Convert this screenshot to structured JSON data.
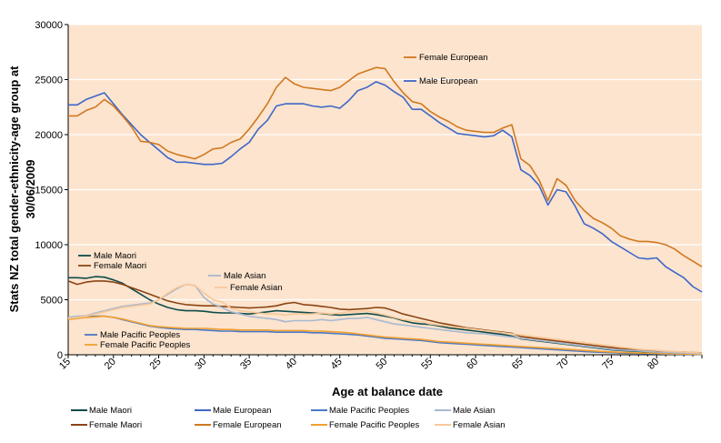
{
  "chart_data": {
    "type": "line",
    "xlabel": "Age at balance date",
    "ylabel_lines": [
      "Stats NZ total gender-ethnicity-age group at",
      "30/06/2009"
    ],
    "ylim": [
      0,
      30000
    ],
    "yticks": [
      "0",
      "5000",
      "10000",
      "15000",
      "20000",
      "25000",
      "30000"
    ],
    "xlim": [
      15,
      85
    ],
    "xticks": [
      "15",
      "20",
      "25",
      "30",
      "35",
      "40",
      "45",
      "50",
      "55",
      "60",
      "65",
      "70",
      "75",
      "80"
    ],
    "grid": "horizontal",
    "plot_background": "#FCE4CE",
    "ages": [
      15,
      16,
      17,
      18,
      19,
      20,
      21,
      22,
      23,
      24,
      25,
      26,
      27,
      28,
      29,
      30,
      31,
      32,
      33,
      34,
      35,
      36,
      37,
      38,
      39,
      40,
      41,
      42,
      43,
      44,
      45,
      46,
      47,
      48,
      49,
      50,
      51,
      52,
      53,
      54,
      55,
      56,
      57,
      58,
      59,
      60,
      61,
      62,
      63,
      64,
      65,
      66,
      67,
      68,
      69,
      70,
      71,
      72,
      73,
      74,
      75,
      76,
      77,
      78,
      79,
      80,
      81,
      82,
      83,
      84,
      85
    ],
    "series": [
      {
        "name": "Male Maori",
        "color": "#0F4B4B",
        "values": [
          7000,
          7000,
          6950,
          7100,
          7050,
          6800,
          6500,
          6000,
          5500,
          5000,
          4600,
          4300,
          4100,
          4000,
          4000,
          3950,
          3850,
          3800,
          3800,
          3750,
          3700,
          3800,
          3900,
          4000,
          3950,
          3900,
          3850,
          3800,
          3750,
          3650,
          3600,
          3650,
          3700,
          3750,
          3650,
          3500,
          3350,
          3100,
          2900,
          2800,
          2750,
          2600,
          2450,
          2350,
          2250,
          2150,
          2050,
          1950,
          1850,
          1700,
          1450,
          1350,
          1250,
          1150,
          1050,
          950,
          850,
          750,
          650,
          550,
          450,
          400,
          350,
          300,
          250,
          200,
          180,
          160,
          140,
          110,
          90
        ]
      },
      {
        "name": "Female Maori",
        "color": "#8B4513",
        "values": [
          6700,
          6400,
          6600,
          6700,
          6700,
          6600,
          6400,
          6100,
          5800,
          5500,
          5200,
          4900,
          4700,
          4550,
          4500,
          4450,
          4450,
          4400,
          4350,
          4300,
          4250,
          4300,
          4350,
          4450,
          4650,
          4750,
          4550,
          4500,
          4400,
          4300,
          4150,
          4100,
          4150,
          4200,
          4300,
          4250,
          4000,
          3700,
          3500,
          3300,
          3100,
          2900,
          2750,
          2600,
          2450,
          2350,
          2250,
          2150,
          2050,
          1950,
          1650,
          1550,
          1450,
          1350,
          1250,
          1150,
          1050,
          950,
          850,
          750,
          650,
          550,
          500,
          450,
          400,
          350,
          300,
          270,
          240,
          200,
          170
        ]
      },
      {
        "name": "Male European",
        "color": "#3F66C8",
        "values": [
          22700,
          22700,
          23200,
          23500,
          23800,
          22800,
          21800,
          20900,
          20000,
          19300,
          18600,
          17900,
          17500,
          17500,
          17400,
          17300,
          17300,
          17400,
          18000,
          18700,
          19300,
          20500,
          21300,
          22600,
          22800,
          22800,
          22800,
          22600,
          22500,
          22600,
          22400,
          23100,
          24000,
          24300,
          24800,
          24500,
          23900,
          23400,
          22300,
          22300,
          21700,
          21100,
          20600,
          20100,
          20000,
          19900,
          19800,
          19900,
          20400,
          19800,
          16800,
          16300,
          15400,
          13600,
          15000,
          14800,
          13500,
          11900,
          11500,
          11000,
          10300,
          9800,
          9300,
          8800,
          8700,
          8800,
          8000,
          7500,
          7000,
          6200,
          5700
        ]
      },
      {
        "name": "Female European",
        "color": "#D07820",
        "values": [
          21700,
          21700,
          22200,
          22500,
          23200,
          22600,
          21700,
          20700,
          19400,
          19300,
          19100,
          18500,
          18200,
          18000,
          17800,
          18200,
          18700,
          18800,
          19300,
          19600,
          20500,
          21600,
          22800,
          24300,
          25200,
          24600,
          24300,
          24200,
          24100,
          24000,
          24300,
          24900,
          25500,
          25800,
          26100,
          26000,
          24800,
          23800,
          23000,
          22800,
          22100,
          21600,
          21200,
          20700,
          20400,
          20300,
          20200,
          20200,
          20600,
          20900,
          17800,
          17200,
          15900,
          14000,
          16000,
          15400,
          14000,
          13100,
          12400,
          12000,
          11500,
          10800,
          10500,
          10300,
          10300,
          10200,
          10000,
          9600,
          9000,
          8500,
          8000
        ]
      },
      {
        "name": "Male Pacific Peoples",
        "color": "#4A78C8",
        "values": [
          3300,
          3400,
          3450,
          3500,
          3500,
          3400,
          3200,
          3000,
          2800,
          2600,
          2500,
          2400,
          2350,
          2300,
          2300,
          2250,
          2200,
          2150,
          2150,
          2100,
          2100,
          2100,
          2100,
          2050,
          2050,
          2050,
          2050,
          2000,
          2000,
          1950,
          1900,
          1850,
          1800,
          1700,
          1600,
          1500,
          1450,
          1400,
          1350,
          1300,
          1200,
          1100,
          1050,
          1000,
          950,
          900,
          850,
          800,
          750,
          700,
          650,
          600,
          550,
          500,
          450,
          400,
          350,
          300,
          250,
          220,
          190,
          160,
          140,
          120,
          100,
          80,
          70,
          60,
          50,
          40,
          30
        ]
      },
      {
        "name": "Female Pacific Peoples",
        "color": "#F0A030",
        "values": [
          3200,
          3300,
          3400,
          3450,
          3500,
          3400,
          3250,
          3050,
          2850,
          2650,
          2550,
          2500,
          2450,
          2400,
          2400,
          2400,
          2350,
          2300,
          2300,
          2250,
          2250,
          2250,
          2250,
          2200,
          2200,
          2200,
          2200,
          2150,
          2150,
          2100,
          2050,
          2000,
          1900,
          1800,
          1700,
          1600,
          1550,
          1500,
          1450,
          1400,
          1300,
          1200,
          1150,
          1100,
          1050,
          1000,
          950,
          900,
          850,
          800,
          750,
          700,
          650,
          600,
          550,
          500,
          450,
          400,
          350,
          300,
          260,
          220,
          190,
          160,
          140,
          120,
          100,
          85,
          70,
          55,
          40
        ]
      },
      {
        "name": "Male Asian",
        "color": "#A8B8D0",
        "values": [
          3400,
          3500,
          3550,
          3800,
          4000,
          4200,
          4400,
          4500,
          4600,
          4700,
          5000,
          5500,
          6000,
          6400,
          6300,
          5200,
          4600,
          4300,
          3900,
          3700,
          3500,
          3400,
          3300,
          3200,
          3000,
          3100,
          3100,
          3100,
          3200,
          3100,
          3200,
          3300,
          3300,
          3400,
          3200,
          3000,
          2800,
          2700,
          2600,
          2500,
          2400,
          2300,
          2200,
          2100,
          2000,
          1950,
          1900,
          1800,
          1700,
          1600,
          1500,
          1400,
          1300,
          1200,
          1100,
          1000,
          900,
          800,
          700,
          600,
          500,
          450,
          400,
          350,
          300,
          250,
          220,
          190,
          160,
          130,
          100
        ]
      },
      {
        "name": "Female Asian",
        "color": "#F8C898",
        "values": [
          3300,
          3400,
          3500,
          3700,
          3900,
          4100,
          4300,
          4400,
          4500,
          4600,
          5000,
          5600,
          6100,
          6400,
          6300,
          5600,
          5000,
          4800,
          4200,
          4000,
          3900,
          3800,
          3700,
          3700,
          3600,
          3700,
          3700,
          3700,
          3800,
          3700,
          3800,
          3900,
          3900,
          4000,
          3800,
          3600,
          3400,
          3200,
          3100,
          3000,
          2800,
          2700,
          2600,
          2500,
          2400,
          2300,
          2200,
          2100,
          2000,
          1900,
          1800,
          1700,
          1600,
          1500,
          1400,
          1300,
          1200,
          1100,
          1000,
          900,
          800,
          700,
          600,
          500,
          450,
          400,
          350,
          300,
          250,
          200,
          150
        ]
      }
    ],
    "annotations": [
      {
        "text": "Female European",
        "series": "Female European"
      },
      {
        "text": "Male European",
        "series": "Male European"
      },
      {
        "text": "Male Maori",
        "series": "Male Maori"
      },
      {
        "text": "Female Maori",
        "series": "Female Maori"
      },
      {
        "text": "Male Asian",
        "series": "Male Asian"
      },
      {
        "text": "Female Asian",
        "series": "Female Asian"
      },
      {
        "text": "Male Pacific Peoples",
        "series": "Male Pacific Peoples"
      },
      {
        "text": "Female Pacific Peoples",
        "series": "Female Pacific Peoples"
      }
    ],
    "legend": {
      "placement": "bottom",
      "rows": [
        [
          "Male Maori",
          "Male European",
          "Male Pacific Peoples",
          "Male Asian"
        ],
        [
          "Female Maori",
          "Female European",
          "Female Pacific Peoples",
          "Female Asian"
        ]
      ]
    }
  }
}
